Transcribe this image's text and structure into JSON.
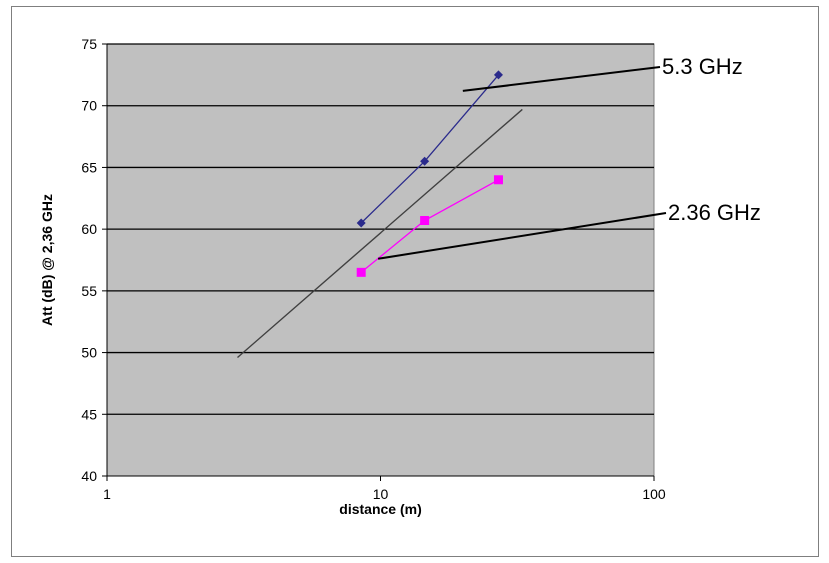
{
  "chart_data": {
    "type": "line",
    "title": "",
    "xlabel": "distance (m)",
    "ylabel": "Att (dB) @ 2,36 GHz",
    "x_scale": "log",
    "xlim": [
      1,
      100
    ],
    "ylim": [
      40,
      75
    ],
    "x_ticks": [
      "1",
      "10",
      "100"
    ],
    "y_ticks": [
      "40",
      "45",
      "50",
      "55",
      "60",
      "65",
      "70",
      "75"
    ],
    "grid": "horizontal",
    "legend": "none",
    "series": [
      {
        "name": "5.3 GHz",
        "color": "#2b2b8c",
        "marker": "diamond",
        "x": [
          8.5,
          14.5,
          27
        ],
        "y": [
          60.5,
          65.5,
          72.5
        ]
      },
      {
        "name": "2.36 GHz",
        "color": "#ff00ff",
        "marker": "square",
        "x": [
          8.5,
          14.5,
          27
        ],
        "y": [
          56.5,
          60.7,
          64
        ]
      }
    ],
    "reference_line": {
      "color": "#404040",
      "x": [
        3,
        33
      ],
      "y": [
        49.6,
        69.7
      ]
    },
    "annotations": [
      {
        "text": "5.3 GHz",
        "series": "5.3 GHz",
        "point": {
          "x": 20,
          "y": 71.2
        }
      },
      {
        "text": "2.36 GHz",
        "series": "2.36 GHz",
        "point": {
          "x": 9.8,
          "y": 57.6
        }
      }
    ],
    "colors": {
      "plot_background": "#c0c0c0",
      "gridline": "#000000"
    }
  }
}
